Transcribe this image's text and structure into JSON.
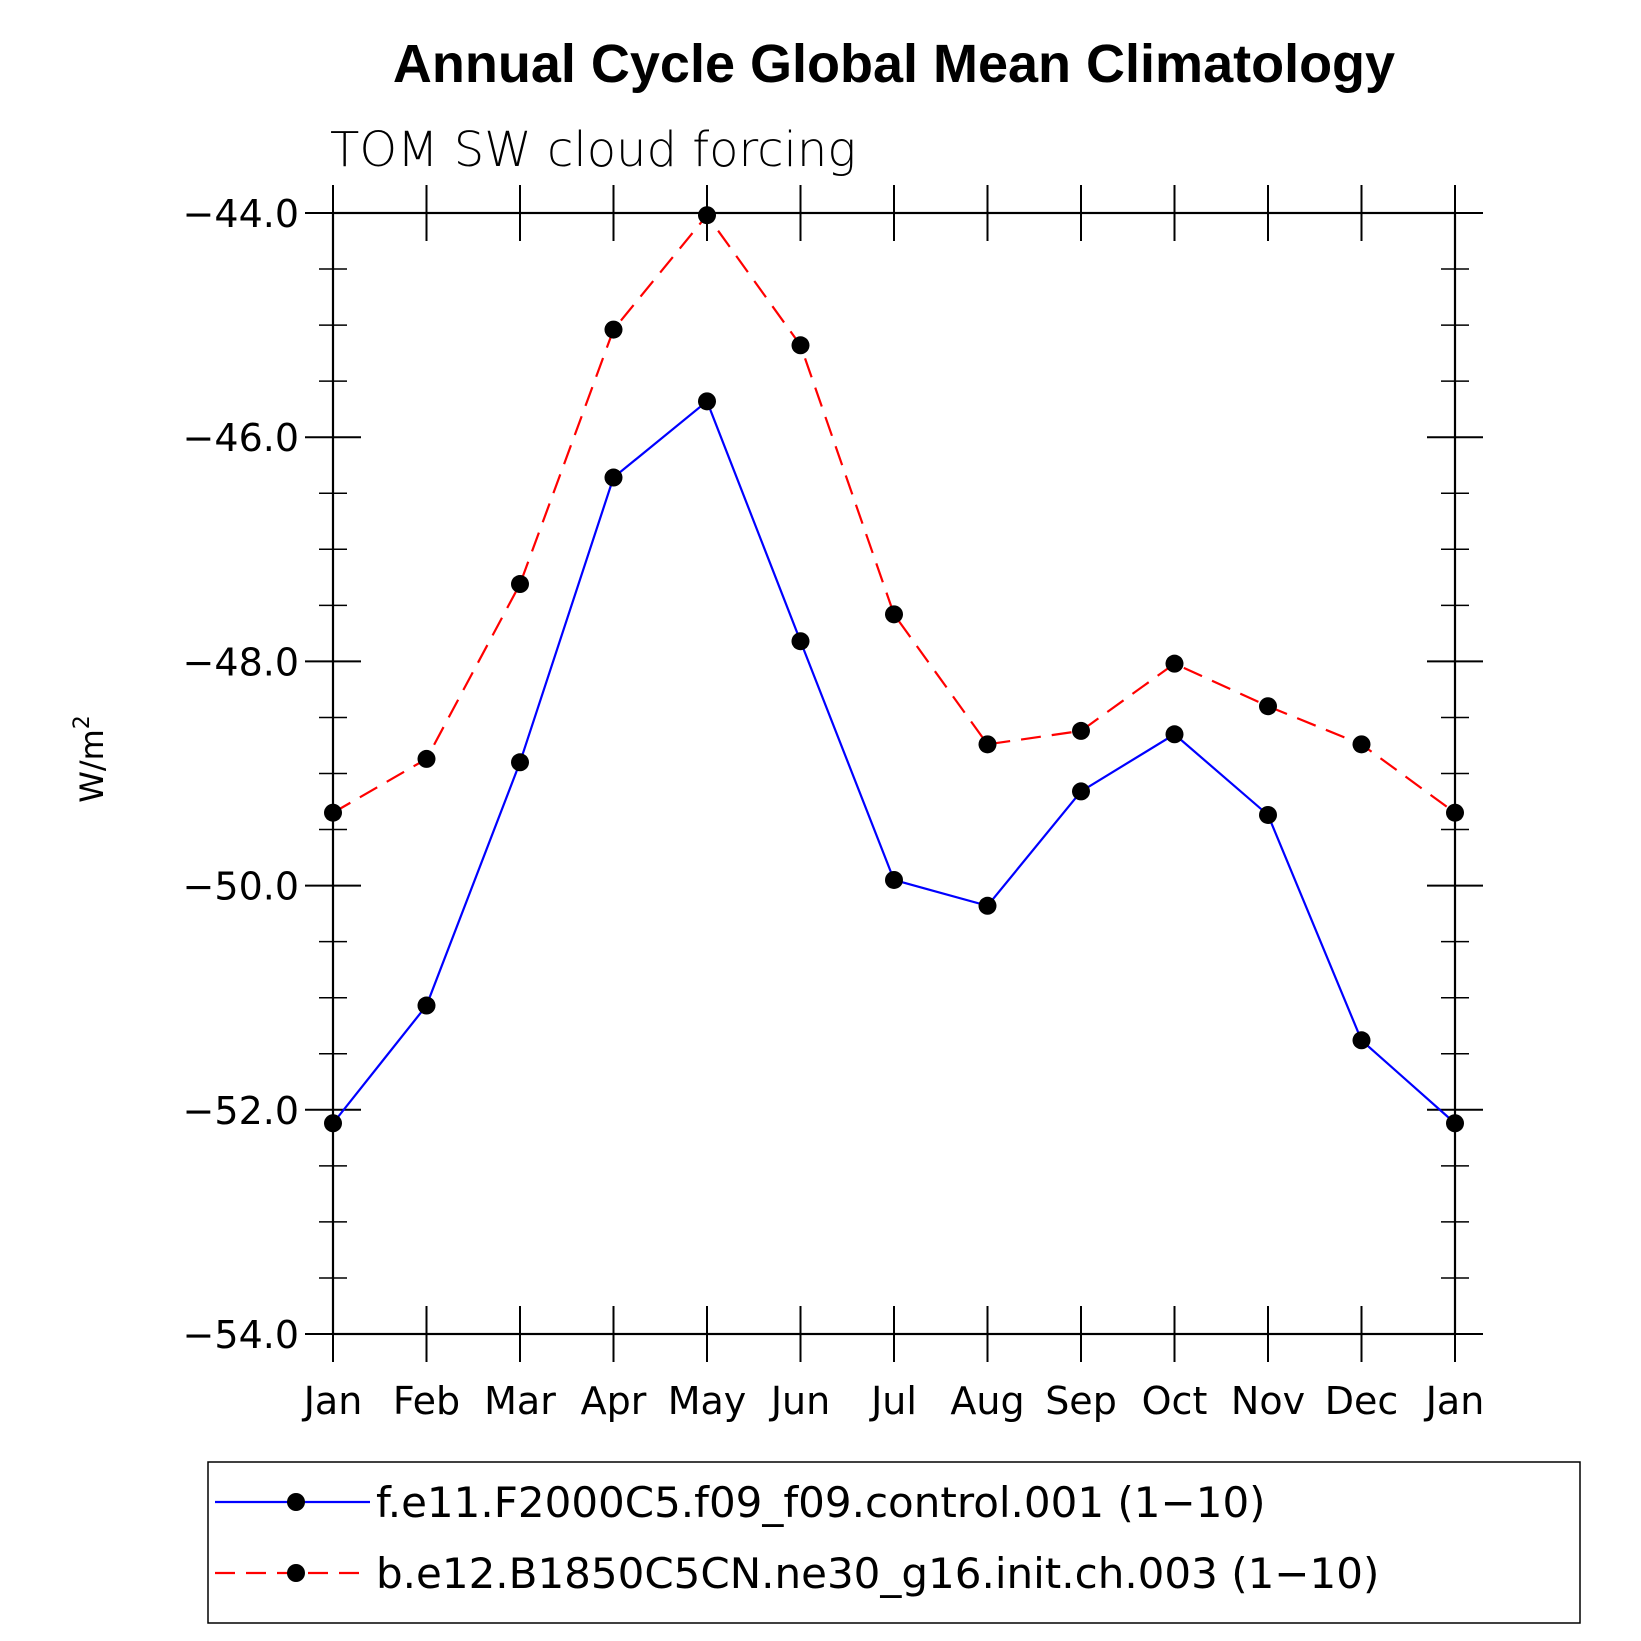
{
  "chart_data": {
    "type": "line",
    "title": "Annual Cycle Global Mean Climatology",
    "subtitle": "TOM SW cloud forcing",
    "ylabel": "W/m",
    "ylabel_sup": "2",
    "ylim": [
      -54.0,
      -44.0
    ],
    "yticks": [
      "−44.0",
      "−46.0",
      "−48.0",
      "−50.0",
      "−52.0",
      "−54.0"
    ],
    "ytick_values": [
      -44,
      -46,
      -48,
      -50,
      -52,
      -54
    ],
    "categories": [
      "Jan",
      "Feb",
      "Mar",
      "Apr",
      "May",
      "Jun",
      "Jul",
      "Aug",
      "Sep",
      "Oct",
      "Nov",
      "Dec",
      "Jan"
    ],
    "series": [
      {
        "name": "f.e11.F2000C5.f09_f09.control.001 (1−10)",
        "color": "#0000ff",
        "dash": "solid",
        "values": [
          -52.12,
          -51.07,
          -48.9,
          -46.36,
          -45.68,
          -47.82,
          -49.95,
          -50.18,
          -49.16,
          -48.65,
          -49.37,
          -51.38,
          -52.12
        ]
      },
      {
        "name": "b.e12.B1850C5CN.ne30_g16.init.ch.003 (1−10)",
        "color": "#ff0000",
        "dash": "dashed",
        "values": [
          -49.35,
          -48.87,
          -47.31,
          -45.04,
          -44.02,
          -45.18,
          -47.58,
          -48.74,
          -48.62,
          -48.02,
          -48.4,
          -48.74,
          -49.35
        ]
      }
    ],
    "grid": false,
    "legend_position": "bottom"
  }
}
